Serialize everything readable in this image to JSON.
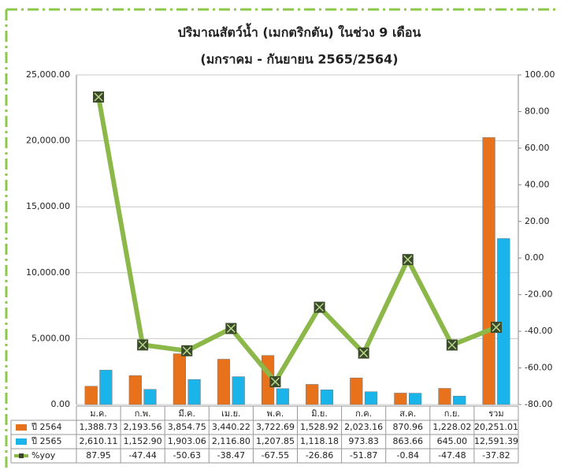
{
  "chart_data": {
    "type": "bar-line",
    "title": "ปริมาณสัตว์น้ำ (เมกตริกตัน) ในช่วง 9 เดือน",
    "subtitle": "(มกราคม - กันยายน 2565/2564)",
    "categories": [
      "ม.ค.",
      "ก.พ.",
      "มี.ค.",
      "เม.ย.",
      "พ.ค.",
      "มิ.ย.",
      "ก.ค.",
      "ส.ค.",
      "ก.ย.",
      "รวม"
    ],
    "series": [
      {
        "name": "ปี 2564",
        "color": "#e8711c",
        "type": "bar",
        "values": [
          1388.73,
          2193.56,
          3854.75,
          3440.22,
          3722.69,
          1528.92,
          2023.16,
          870.96,
          1228.02,
          20251.01
        ],
        "value_labels": [
          "1,388.73",
          "2,193.56",
          "3,854.75",
          "3,440.22",
          "3,722.69",
          "1,528.92",
          "2,023.16",
          "870.96",
          "1,228.02",
          "20,251.01"
        ]
      },
      {
        "name": "ปี 2565",
        "color": "#18b4ea",
        "type": "bar",
        "values": [
          2610.11,
          1152.9,
          1903.06,
          2116.8,
          1207.85,
          1118.18,
          973.83,
          863.66,
          645.0,
          12591.39
        ],
        "value_labels": [
          "2,610.11",
          "1,152.90",
          "1,903.06",
          "2,116.80",
          "1,207.85",
          "1,118.18",
          "973.83",
          "863.66",
          "645.00",
          "12,591.39"
        ]
      },
      {
        "name": "%yoy",
        "color": "#8cb84a",
        "type": "line",
        "axis": "y2",
        "values": [
          87.95,
          -47.44,
          -50.63,
          -38.47,
          -67.55,
          -26.86,
          -51.87,
          -0.84,
          -47.48,
          -37.82
        ],
        "value_labels": [
          "87.95",
          "-47.44",
          "-50.63",
          "-38.47",
          "-67.55",
          "-26.86",
          "-51.87",
          "-0.84",
          "-47.48",
          "-37.82"
        ]
      }
    ],
    "ylim": [
      0,
      25000
    ],
    "yticks": [
      {
        "value": 0,
        "label": "0.00"
      },
      {
        "value": 5000,
        "label": "5,000.00"
      },
      {
        "value": 10000,
        "label": "10,000.00"
      },
      {
        "value": 15000,
        "label": "15,000.00"
      },
      {
        "value": 20000,
        "label": "20,000.00"
      },
      {
        "value": 25000,
        "label": "25,000.00"
      }
    ],
    "y2lim": [
      -80,
      100
    ],
    "y2ticks": [
      {
        "value": -80,
        "label": "-80.00"
      },
      {
        "value": -60,
        "label": "-60.00"
      },
      {
        "value": -40,
        "label": "-40.00"
      },
      {
        "value": -20,
        "label": "-20.00"
      },
      {
        "value": 0,
        "label": "0.00"
      },
      {
        "value": 20,
        "label": "20.00"
      },
      {
        "value": 40,
        "label": "40.00"
      },
      {
        "value": 60,
        "label": "60.00"
      },
      {
        "value": 80,
        "label": "80.00"
      },
      {
        "value": 100,
        "label": "100.00"
      }
    ],
    "grid": true
  }
}
